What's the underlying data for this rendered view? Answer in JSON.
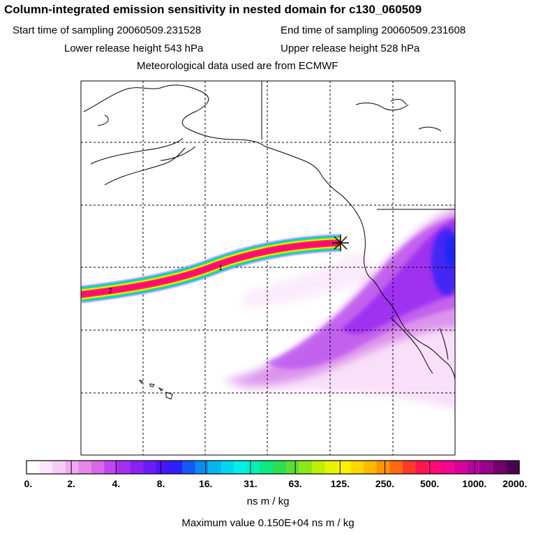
{
  "header": {
    "title": "Column-integrated emission sensitivity in nested domain for c130_060509",
    "start_label": "Start time of sampling 20060509.231528",
    "end_label": "End time of sampling 20060509.231608",
    "lower_label": "Lower release height  543 hPa",
    "upper_label": "Upper release height  528 hPa",
    "met_label": "Meteorological data used are from ECMWF"
  },
  "map": {
    "trajectory_labels": [
      "1",
      "2"
    ],
    "release_marker": "asterisk-icon"
  },
  "colorbar": {
    "tick_labels": [
      "0.",
      "2.",
      "4.",
      "8.",
      "16.",
      "31.",
      "63.",
      "125.",
      "250.",
      "500.",
      "1000.",
      "2000."
    ],
    "colors": [
      "#ffffff",
      "#fbe6fb",
      "#f6ccf6",
      "#efaaef",
      "#e68ae6",
      "#d868e8",
      "#c244ef",
      "#a62cf2",
      "#8a22f5",
      "#6a1cf8",
      "#4a14fa",
      "#2a20fb",
      "#1458f6",
      "#0a8cf0",
      "#04b6ee",
      "#00d6f0",
      "#00f0e8",
      "#00f0b8",
      "#10e880",
      "#28e050",
      "#5ae030",
      "#8ce818",
      "#bcf000",
      "#e6f400",
      "#fff200",
      "#ffd800",
      "#ffba00",
      "#ff9400",
      "#ff6a10",
      "#ff3a28",
      "#ff1650",
      "#ff0a78",
      "#f0088e",
      "#d6069a",
      "#b804a0",
      "#960488",
      "#70026a",
      "#4a0250"
    ],
    "units": "ns m / kg",
    "max_value_text": "Maximum value  0.150E+04 ns m / kg"
  }
}
